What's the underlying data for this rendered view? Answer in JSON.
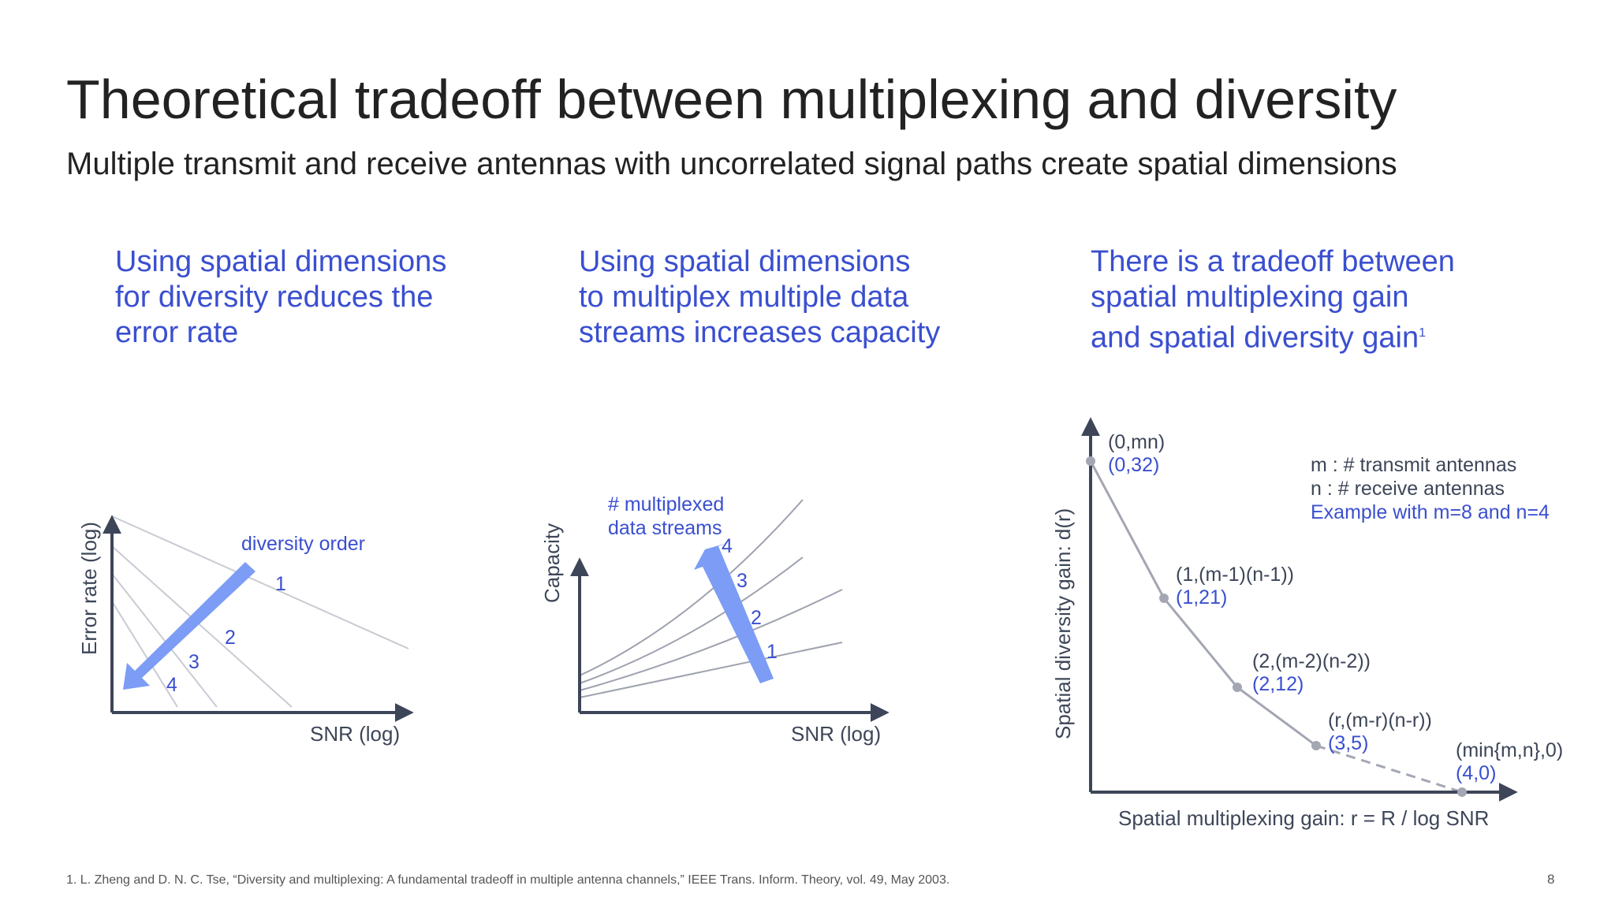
{
  "slide": {
    "title": "Theoretical tradeoff between multiplexing and diversity",
    "subtitle": "Multiple transmit and receive antennas with uncorrelated signal paths create spatial dimensions",
    "page_number": "8",
    "footnote": "1. L. Zheng and D. N. C. Tse, “Diversity and multiplexing: A fundamental tradeoff in multiple antenna channels,” IEEE Trans. Inform. Theory, vol. 49, May 2003."
  },
  "colors": {
    "accent_blue": "#3a4fcf",
    "arrow_blue": "#7c9cf5",
    "axis": "#3d4658",
    "curve_gray": "#c8cbd3",
    "point_gray": "#a3a6b3"
  },
  "columns": [
    {
      "heading_lines": [
        "Using spatial dimensions",
        "for diversity reduces the",
        "error rate"
      ],
      "diagram": {
        "x_axis_label": "SNR (log)",
        "y_axis_label": "Error rate (log)",
        "arrow_label": "diversity order",
        "curve_labels": [
          "1",
          "2",
          "3",
          "4"
        ]
      }
    },
    {
      "heading_lines": [
        "Using spatial dimensions",
        "to multiplex multiple data",
        "streams increases capacity"
      ],
      "diagram": {
        "x_axis_label": "SNR (log)",
        "y_axis_label": "Capacity",
        "arrow_label_lines": [
          "# multiplexed",
          "data streams"
        ],
        "curve_labels": [
          "1",
          "2",
          "3",
          "4"
        ]
      }
    },
    {
      "heading_lines": [
        "There is a tradeoff between",
        "spatial multiplexing gain",
        "and spatial diversity gain"
      ],
      "heading_sup": "1",
      "diagram": {
        "x_axis_label": "Spatial multiplexing gain: r = R / log SNR",
        "y_axis_label": "Spatial diversity gain: d(r)",
        "legend_lines": [
          "m : # transmit antennas",
          "n : # receive antennas"
        ],
        "legend_example": "Example with m=8 and n=4",
        "points": [
          {
            "formula": "(0,mn)",
            "example": "(0,32)",
            "r": 0,
            "d": 32
          },
          {
            "formula": "(1,(m-1)(n-1))",
            "example": "(1,21)",
            "r": 1,
            "d": 21
          },
          {
            "formula": "(2,(m-2)(n-2))",
            "example": "(2,12)",
            "r": 2,
            "d": 12
          },
          {
            "formula": "(r,(m-r)(n-r))",
            "example": "(3,5)",
            "r": 3,
            "d": 5
          },
          {
            "formula": "(min{m,n},0)",
            "example": "(4,0)",
            "r": 4,
            "d": 0
          }
        ]
      }
    }
  ]
}
